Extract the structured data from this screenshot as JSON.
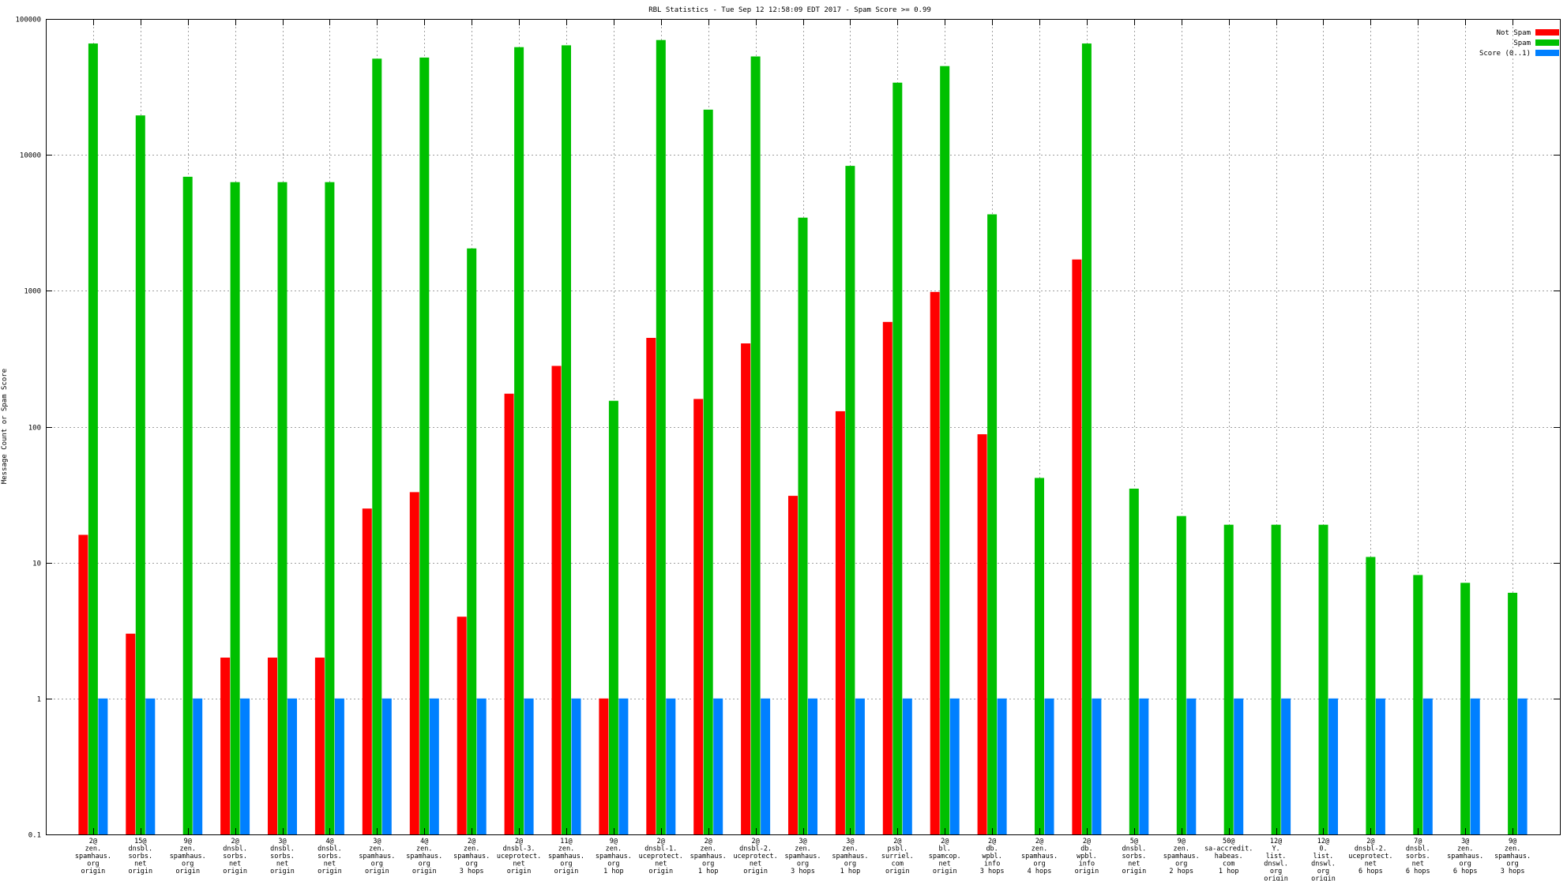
{
  "chart_data": {
    "type": "bar",
    "title": "RBL Statistics - Tue Sep 12 12:58:09 EDT 2017 - Spam Score >= 0.99",
    "xlabel": "",
    "ylabel": "Message Count or Spam Score",
    "yscale": "log",
    "ylim": [
      0.1,
      100000
    ],
    "yticks": [
      "0.1",
      "1",
      "10",
      "100",
      "1000",
      "10000",
      "100000"
    ],
    "grid": true,
    "legend_position": "top-right",
    "categories": [
      [
        "2@",
        "zen.",
        "spamhaus.",
        "org",
        "origin"
      ],
      [
        "15@",
        "dnsbl.",
        "sorbs.",
        "net",
        "origin"
      ],
      [
        "9@",
        "zen.",
        "spamhaus.",
        "org",
        "origin"
      ],
      [
        "2@",
        "dnsbl.",
        "sorbs.",
        "net",
        "origin"
      ],
      [
        "3@",
        "dnsbl.",
        "sorbs.",
        "net",
        "origin"
      ],
      [
        "4@",
        "dnsbl.",
        "sorbs.",
        "net",
        "origin"
      ],
      [
        "3@",
        "zen.",
        "spamhaus.",
        "org",
        "origin"
      ],
      [
        "4@",
        "zen.",
        "spamhaus.",
        "org",
        "origin"
      ],
      [
        "2@",
        "zen.",
        "spamhaus.",
        "org",
        "3 hops"
      ],
      [
        "2@",
        "dnsbl-3.",
        "uceprotect.",
        "net",
        "origin"
      ],
      [
        "11@",
        "zen.",
        "spamhaus.",
        "org",
        "origin"
      ],
      [
        "9@",
        "zen.",
        "spamhaus.",
        "org",
        "1 hop"
      ],
      [
        "2@",
        "dnsbl-1.",
        "uceprotect.",
        "net",
        "origin"
      ],
      [
        "2@",
        "zen.",
        "spamhaus.",
        "org",
        "1 hop"
      ],
      [
        "2@",
        "dnsbl-2.",
        "uceprotect.",
        "net",
        "origin"
      ],
      [
        "3@",
        "zen.",
        "spamhaus.",
        "org",
        "3 hops"
      ],
      [
        "3@",
        "zen.",
        "spamhaus.",
        "org",
        "1 hop"
      ],
      [
        "2@",
        "psbl.",
        "surriel.",
        "com",
        "origin"
      ],
      [
        "2@",
        "bl.",
        "spamcop.",
        "net",
        "origin"
      ],
      [
        "2@",
        "db.",
        "wpbl.",
        "info",
        "3 hops"
      ],
      [
        "2@",
        "zen.",
        "spamhaus.",
        "org",
        "4 hops"
      ],
      [
        "2@",
        "db.",
        "wpbl.",
        "info",
        "origin"
      ],
      [
        "5@",
        "dnsbl.",
        "sorbs.",
        "net",
        "origin"
      ],
      [
        "9@",
        "zen.",
        "spamhaus.",
        "org",
        "2 hops"
      ],
      [
        "50@",
        "sa-accredit.",
        "habeas.",
        "com",
        "1 hop"
      ],
      [
        "12@",
        "Y.",
        "list.",
        "dnswl.",
        "org",
        "origin"
      ],
      [
        "12@",
        "0.",
        "list.",
        "dnswl.",
        "org",
        "origin"
      ],
      [
        "2@",
        "dnsbl-2.",
        "uceprotect.",
        "net",
        "6 hops"
      ],
      [
        "7@",
        "dnsbl.",
        "sorbs.",
        "net",
        "6 hops"
      ],
      [
        "3@",
        "zen.",
        "spamhaus.",
        "org",
        "6 hops"
      ],
      [
        "9@",
        "zen.",
        "spamhaus.",
        "org",
        "3 hops"
      ]
    ],
    "series": [
      {
        "name": "Not Spam",
        "color": "#ff0000",
        "values": [
          16,
          3,
          null,
          2,
          2,
          2,
          25,
          33,
          4,
          175,
          280,
          1,
          450,
          160,
          410,
          31,
          130,
          590,
          980,
          88,
          null,
          1700,
          null,
          null,
          null,
          null,
          null,
          null,
          null,
          null,
          null
        ]
      },
      {
        "name": "Spam",
        "color": "#00c000",
        "values": [
          66000,
          19500,
          6900,
          6300,
          6300,
          6300,
          51000,
          52000,
          2050,
          62000,
          64000,
          155,
          70000,
          21500,
          53000,
          3450,
          8300,
          34000,
          45000,
          3650,
          42,
          66000,
          35,
          22,
          19,
          19,
          19,
          11,
          8.1,
          7.1,
          6
        ]
      },
      {
        "name": "Score (0..1)",
        "color": "#0080ff",
        "values": [
          1,
          1,
          1,
          1,
          1,
          1,
          1,
          1,
          1,
          1,
          1,
          1,
          1,
          1,
          1,
          1,
          1,
          1,
          1,
          1,
          1,
          1,
          1,
          1,
          1,
          1,
          1,
          1,
          1,
          1,
          1
        ]
      }
    ]
  }
}
